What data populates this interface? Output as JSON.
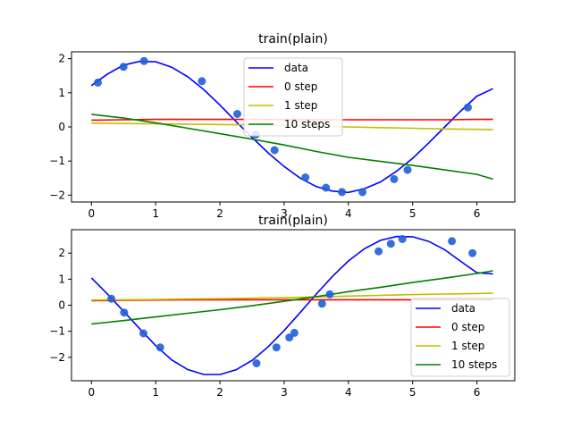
{
  "chart_data": [
    {
      "type": "line",
      "title": "train(plain)",
      "xlim": [
        -0.31,
        6.59
      ],
      "ylim": [
        -2.2,
        2.2
      ],
      "xticks": [
        0,
        1,
        2,
        3,
        4,
        5,
        6
      ],
      "yticks": [
        -2,
        -1,
        0,
        1,
        2
      ],
      "grid": false,
      "legend_position": "top-center",
      "series": [
        {
          "name": "data",
          "color": "#0000ff",
          "x": [
            0,
            0.25,
            0.5,
            0.75,
            1.0,
            1.25,
            1.5,
            1.75,
            2.0,
            2.25,
            2.5,
            2.75,
            3.0,
            3.25,
            3.5,
            3.75,
            4.0,
            4.25,
            4.5,
            4.75,
            5.0,
            5.25,
            5.5,
            5.75,
            6.0,
            6.25
          ],
          "values": [
            1.21,
            1.55,
            1.81,
            1.92,
            1.91,
            1.75,
            1.47,
            1.09,
            0.64,
            0.16,
            -0.31,
            -0.76,
            -1.16,
            -1.5,
            -1.75,
            -1.88,
            -1.92,
            -1.81,
            -1.61,
            -1.3,
            -0.92,
            -0.47,
            0.0,
            0.47,
            0.9,
            1.12
          ]
        },
        {
          "name": "0 step",
          "color": "#ff0000",
          "x": [
            0,
            0.5,
            1.0,
            1.5,
            2.0,
            2.5,
            3.0,
            3.5,
            4.0,
            4.5,
            5.0,
            5.5,
            6.0,
            6.25
          ],
          "values": [
            0.2,
            0.21,
            0.22,
            0.22,
            0.22,
            0.22,
            0.21,
            0.21,
            0.21,
            0.21,
            0.21,
            0.21,
            0.22,
            0.22
          ]
        },
        {
          "name": "1 step",
          "color": "#bfbf00",
          "x": [
            0,
            0.5,
            1.0,
            1.5,
            2.0,
            2.5,
            3.0,
            3.5,
            4.0,
            4.5,
            5.0,
            5.5,
            6.0,
            6.25
          ],
          "values": [
            0.11,
            0.1,
            0.09,
            0.08,
            0.07,
            0.06,
            0.04,
            0.02,
            0.0,
            -0.02,
            -0.04,
            -0.06,
            -0.07,
            -0.08
          ]
        },
        {
          "name": "10 steps",
          "color": "#008000",
          "x": [
            0,
            0.5,
            1.0,
            1.5,
            2.0,
            2.5,
            3.0,
            3.5,
            4.0,
            4.5,
            5.0,
            5.5,
            6.0,
            6.25
          ],
          "values": [
            0.37,
            0.26,
            0.12,
            -0.04,
            -0.2,
            -0.36,
            -0.53,
            -0.72,
            -0.89,
            -1.01,
            -1.13,
            -1.26,
            -1.39,
            -1.53
          ]
        }
      ],
      "points": {
        "color": "#1f5fd6",
        "x": [
          0.1,
          0.5,
          0.82,
          1.72,
          2.27,
          2.56,
          2.85,
          3.33,
          3.65,
          3.9,
          4.22,
          4.71,
          4.92,
          5.86
        ],
        "y": [
          1.3,
          1.76,
          1.93,
          1.34,
          0.38,
          -0.22,
          -0.68,
          -1.48,
          -1.78,
          -1.91,
          -1.91,
          -1.53,
          -1.26,
          0.57
        ]
      }
    },
    {
      "type": "line",
      "title": "train(plain)",
      "xlim": [
        -0.31,
        6.59
      ],
      "ylim": [
        -2.9,
        2.9
      ],
      "xticks": [
        0,
        1,
        2,
        3,
        4,
        5,
        6
      ],
      "yticks": [
        -2,
        -1,
        0,
        1,
        2
      ],
      "grid": false,
      "legend_position": "lower-right",
      "series": [
        {
          "name": "data",
          "color": "#0000ff",
          "x": [
            0,
            0.25,
            0.5,
            0.75,
            1.0,
            1.25,
            1.5,
            1.75,
            2.0,
            2.25,
            2.5,
            2.75,
            3.0,
            3.25,
            3.5,
            3.75,
            4.0,
            4.25,
            4.5,
            4.75,
            5.0,
            5.25,
            5.5,
            5.75,
            6.0,
            6.25
          ],
          "values": [
            1.05,
            0.43,
            -0.23,
            -0.9,
            -1.55,
            -2.1,
            -2.47,
            -2.66,
            -2.66,
            -2.48,
            -2.12,
            -1.6,
            -0.97,
            -0.28,
            0.43,
            1.1,
            1.7,
            2.17,
            2.49,
            2.64,
            2.63,
            2.45,
            2.13,
            1.68,
            1.25,
            1.2
          ]
        },
        {
          "name": "0 step",
          "color": "#ff0000",
          "x": [
            0,
            0.5,
            1.0,
            1.5,
            2.0,
            2.5,
            3.0,
            3.5,
            4.0,
            4.5,
            5.0,
            5.5,
            6.0,
            6.25
          ],
          "values": [
            0.17,
            0.19,
            0.2,
            0.21,
            0.21,
            0.21,
            0.21,
            0.21,
            0.21,
            0.21,
            0.21,
            0.21,
            0.21,
            0.21
          ]
        },
        {
          "name": "1 step",
          "color": "#bfbf00",
          "x": [
            0,
            0.5,
            1.0,
            1.5,
            2.0,
            2.5,
            3.0,
            3.5,
            4.0,
            4.5,
            5.0,
            5.5,
            6.0,
            6.25
          ],
          "values": [
            0.2,
            0.21,
            0.22,
            0.24,
            0.25,
            0.27,
            0.29,
            0.32,
            0.35,
            0.38,
            0.41,
            0.43,
            0.45,
            0.46
          ]
        },
        {
          "name": "10 steps",
          "color": "#008000",
          "x": [
            0,
            0.5,
            1.0,
            1.5,
            2.0,
            2.5,
            3.0,
            3.5,
            4.0,
            4.5,
            5.0,
            5.5,
            6.0,
            6.25
          ],
          "values": [
            -0.72,
            -0.59,
            -0.45,
            -0.31,
            -0.17,
            -0.02,
            0.15,
            0.33,
            0.52,
            0.69,
            0.87,
            1.04,
            1.22,
            1.32
          ]
        }
      ],
      "points": {
        "color": "#1f5fd6",
        "x": [
          0.31,
          0.51,
          0.81,
          1.07,
          2.57,
          2.88,
          3.08,
          3.16,
          3.59,
          3.71,
          4.47,
          4.66,
          4.84,
          5.61,
          5.93
        ],
        "y": [
          0.25,
          -0.28,
          -1.08,
          -1.62,
          -2.23,
          -1.62,
          -1.24,
          -1.06,
          0.06,
          0.42,
          2.07,
          2.36,
          2.54,
          2.46,
          2.0
        ]
      }
    }
  ]
}
